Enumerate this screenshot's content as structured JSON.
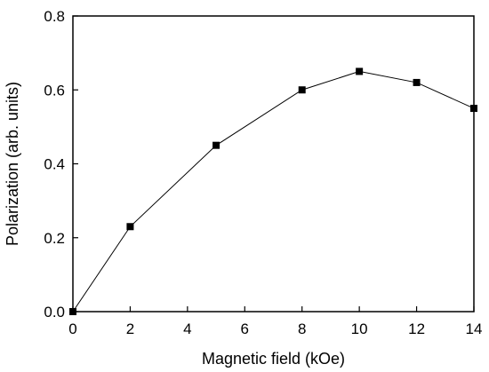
{
  "chart_data": {
    "type": "line",
    "title": "",
    "xlabel": "Magnetic field (kOe)",
    "ylabel": "Polarization (arb. units)",
    "xlim": [
      0,
      14
    ],
    "ylim": [
      0.0,
      0.8
    ],
    "xticks": [
      0,
      2,
      4,
      6,
      8,
      10,
      12,
      14
    ],
    "yticks": [
      0.0,
      0.2,
      0.4,
      0.6,
      0.8
    ],
    "xtick_labels": [
      "0",
      "2",
      "4",
      "6",
      "8",
      "10",
      "12",
      "14"
    ],
    "ytick_labels": [
      "0.0",
      "0.2",
      "0.4",
      "0.6",
      "0.8"
    ],
    "grid": false,
    "legend": "none",
    "marker": "square",
    "series": [
      {
        "x": [
          0,
          2,
          5,
          8,
          10,
          12,
          14
        ],
        "y": [
          0.0,
          0.23,
          0.45,
          0.6,
          0.65,
          0.62,
          0.55
        ]
      }
    ],
    "colors": {
      "line": "#000000",
      "marker": "#000000",
      "axes": "#000000"
    }
  }
}
